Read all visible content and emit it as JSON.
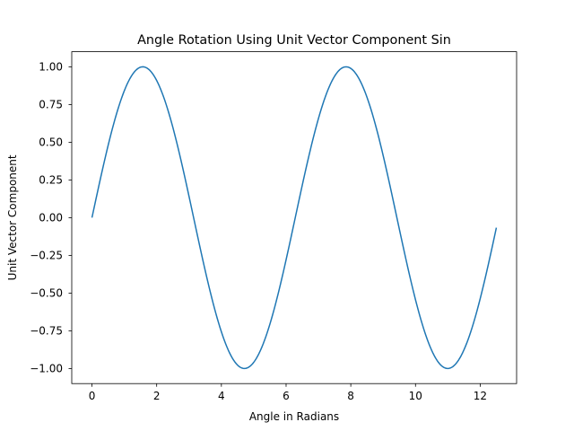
{
  "chart_data": {
    "type": "line",
    "title": "Angle Rotation Using Unit Vector Component Sin",
    "xlabel": "Angle in Radians",
    "ylabel": "Unit Vector Component",
    "xlim": [
      -0.625,
      13.125
    ],
    "ylim": [
      -1.1,
      1.1
    ],
    "x_ticks": [
      0,
      2,
      4,
      6,
      8,
      10,
      12
    ],
    "x_tick_labels": [
      "0",
      "2",
      "4",
      "6",
      "8",
      "10",
      "12"
    ],
    "y_ticks": [
      -1.0,
      -0.75,
      -0.5,
      -0.25,
      0.0,
      0.25,
      0.5,
      0.75,
      1.0
    ],
    "y_tick_labels": [
      "−1.00",
      "−0.75",
      "−0.50",
      "−0.25",
      "0.00",
      "0.25",
      "0.50",
      "0.75",
      "1.00"
    ],
    "grid": false,
    "series": [
      {
        "color": "#1f77b4",
        "function": "sin(x)",
        "x_range": [
          0,
          12.5
        ],
        "points": [
          [
            0.0,
            0.0
          ],
          [
            0.5,
            0.479
          ],
          [
            1.0,
            0.841
          ],
          [
            1.5708,
            1.0
          ],
          [
            2.0,
            0.909
          ],
          [
            3.0,
            0.141
          ],
          [
            4.0,
            -0.757
          ],
          [
            4.7124,
            -1.0
          ],
          [
            5.0,
            -0.959
          ],
          [
            6.0,
            -0.279
          ],
          [
            7.0,
            0.657
          ],
          [
            7.854,
            1.0
          ],
          [
            9.0,
            0.412
          ],
          [
            10.0,
            -0.544
          ],
          [
            10.9956,
            -1.0
          ],
          [
            12.0,
            -0.537
          ],
          [
            12.5,
            -0.066
          ]
        ]
      }
    ]
  }
}
